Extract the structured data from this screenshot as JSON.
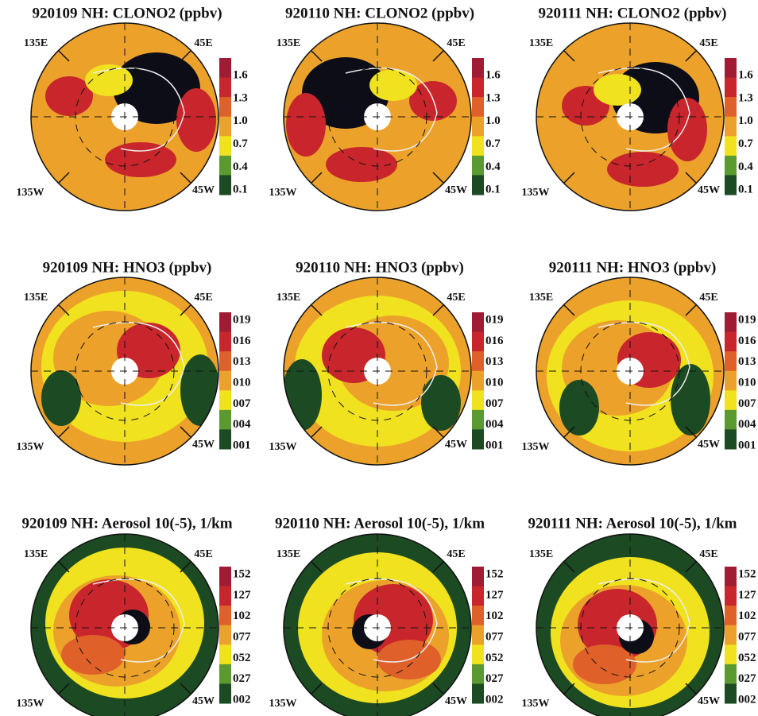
{
  "panels": [
    {
      "title": "920109 NH: CLONO2 (ppbv)",
      "lon_labels": [
        "135E",
        "45E",
        "135W",
        "45W"
      ],
      "colorbar_labels": [
        "1.6",
        "1.3",
        "1.0",
        "0.7",
        "0.4",
        "0.1"
      ]
    },
    {
      "title": "920110 NH: CLONO2 (ppbv)",
      "lon_labels": [
        "135E",
        "45E",
        "135W",
        "45W"
      ],
      "colorbar_labels": [
        "1.6",
        "1.3",
        "1.0",
        "0.7",
        "0.4",
        "0.1"
      ]
    },
    {
      "title": "920111 NH: CLONO2 (ppbv)",
      "lon_labels": [
        "135E",
        "45E",
        "135W",
        "45W"
      ],
      "colorbar_labels": [
        "1.6",
        "1.3",
        "1.0",
        "0.7",
        "0.4",
        "0.1"
      ]
    },
    {
      "title": "920109 NH: HNO3 (ppbv)",
      "lon_labels": [
        "135E",
        "45E",
        "135W",
        "45W"
      ],
      "colorbar_labels": [
        "019",
        "016",
        "013",
        "010",
        "007",
        "004",
        "001"
      ]
    },
    {
      "title": "920110 NH: HNO3 (ppbv)",
      "lon_labels": [
        "135E",
        "45E",
        "135W",
        "45W"
      ],
      "colorbar_labels": [
        "019",
        "016",
        "013",
        "010",
        "007",
        "004",
        "001"
      ]
    },
    {
      "title": "920111 NH: HNO3 (ppbv)",
      "lon_labels": [
        "135E",
        "45E",
        "135W",
        "45W"
      ],
      "colorbar_labels": [
        "019",
        "016",
        "013",
        "010",
        "007",
        "004",
        "001"
      ]
    },
    {
      "title": "920109 NH: Aerosol 10(-5), 1/km",
      "lon_labels": [
        "135E",
        "45E",
        "135W",
        "45W"
      ],
      "colorbar_labels": [
        "152",
        "127",
        "102",
        "077",
        "052",
        "027",
        "002"
      ]
    },
    {
      "title": "920110 NH: Aerosol 10(-5), 1/km",
      "lon_labels": [
        "135E",
        "45E",
        "135W",
        "45W"
      ],
      "colorbar_labels": [
        "152",
        "127",
        "102",
        "077",
        "052",
        "027",
        "002"
      ]
    },
    {
      "title": "920111 NH: Aerosol 10(-5), 1/km",
      "lon_labels": [
        "135E",
        "45E",
        "135W",
        "45W"
      ],
      "colorbar_labels": [
        "152",
        "127",
        "102",
        "077",
        "052",
        "027",
        "002"
      ]
    }
  ]
}
